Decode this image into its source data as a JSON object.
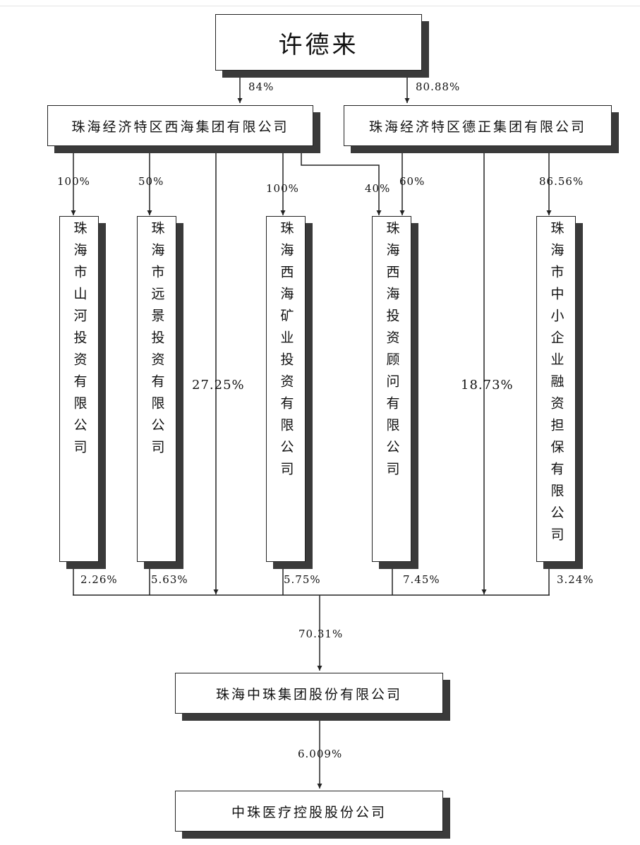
{
  "top": {
    "name": "许德来"
  },
  "groups": {
    "xihai": {
      "name": "珠海经济特区西海集团有限公司",
      "stake_from_top": "84%"
    },
    "dezheng": {
      "name": "珠海经济特区德正集团有限公司",
      "stake_from_top": "80.88%"
    }
  },
  "subs": {
    "shanhe": {
      "name": "珠海市山河投资有限公司",
      "stake_in": "100%",
      "stake_out": "2.26%"
    },
    "yuanjing": {
      "name": "珠海市远景投资有限公司",
      "stake_in": "50%",
      "stake_out": "5.63%"
    },
    "kuangye": {
      "name": "珠海西海矿业投资有限公司",
      "stake_in": "100%",
      "stake_out": "5.75%"
    },
    "guwen": {
      "name": "珠海西海投资顾问有限公司",
      "stake_in_xihai": "40%",
      "stake_in_dezheng": "60%",
      "stake_out": "7.45%"
    },
    "danbao": {
      "name": "珠海市中小企业融资担保有限公司",
      "stake_in": "86.56%",
      "stake_out": "3.24%"
    }
  },
  "direct": {
    "xihai_to_zhongzhu": "27.25%",
    "dezheng_to_zhongzhu": "18.73%"
  },
  "zhongzhu": {
    "name": "珠海中珠集团股份有限公司",
    "total_stake_in": "70.31%"
  },
  "target": {
    "name": "中珠医疗控股股份公司",
    "stake_in": "6.009%"
  }
}
